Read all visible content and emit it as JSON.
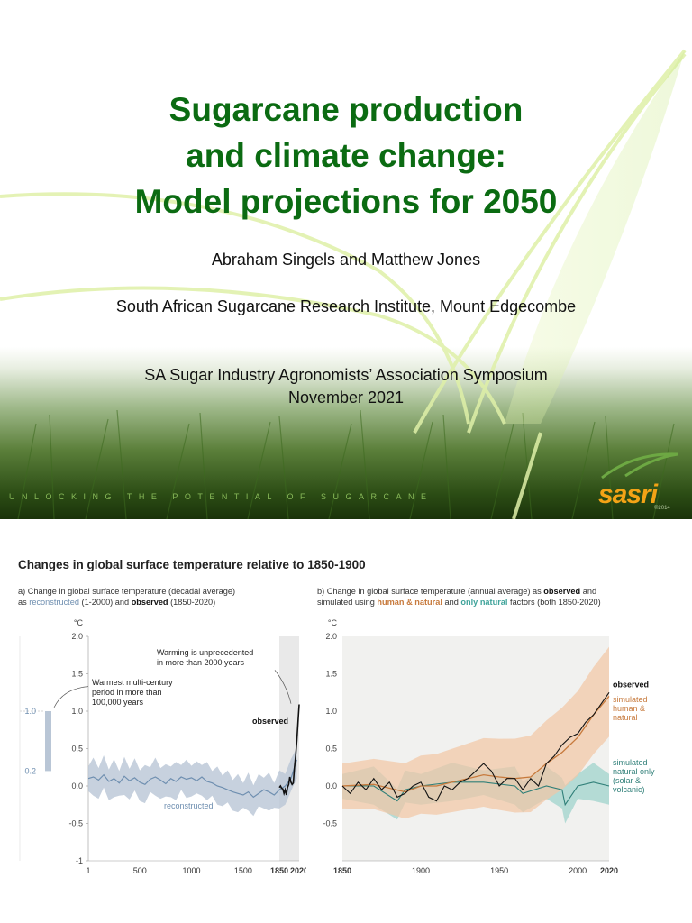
{
  "slide": {
    "title_lines": [
      "Sugarcane production",
      "and climate change:",
      "Model projections for 2050"
    ],
    "authors": "Abraham Singels and Matthew Jones",
    "institute": "South African Sugarcane Research Institute, Mount Edgecombe",
    "symposium": "SA Sugar Industry Agronomists’ Association Symposium",
    "date": "November 2021",
    "tagline": "UNLOCKING THE POTENTIAL OF SUGARCANE",
    "logo": "sasri",
    "copyright": "©2014",
    "colors": {
      "title": "#0b6b12",
      "logo": "#f3a316",
      "grass_dark": "#1e3d0c",
      "grass_light": "#8db560"
    }
  },
  "figure": {
    "title": "Changes in global surface temperature relative to 1850-1900",
    "panel_a_caption": {
      "line1": "a) Change in global surface temperature (decadal average)",
      "line2_as": "as",
      "line2_reconstructed": "reconstructed",
      "line2_mid": "(1-2000) and",
      "line2_observed": "observed",
      "line2_end": "(1850-2020)"
    },
    "panel_b_caption": {
      "line1_a": "b) Change in global surface temperature (annual average) as",
      "line1_observed": "observed",
      "line1_and": "and",
      "line2_a": "simulated using",
      "line2_human": "human & natural",
      "line2_and": "and",
      "line2_natural": "only natural",
      "line2_end": "factors (both 1850-2020)"
    }
  },
  "chart_data": [
    {
      "type": "line",
      "panel": "a",
      "title": "",
      "ylabel": "°C",
      "xlabel": "",
      "ylim": [
        -1,
        2
      ],
      "xlim": [
        1,
        2020
      ],
      "x_ticks": [
        "1",
        "500",
        "1000",
        "1500",
        "1850",
        "2020"
      ],
      "y_ticks": [
        "2.0",
        "1.5",
        "1.0",
        "0.5",
        "0.0",
        "-0.5",
        "-1"
      ],
      "bar_labels": [
        "1.0",
        "0.2"
      ],
      "warm_period_bar": [
        0.2,
        1.0
      ],
      "annotations": [
        "Warming is unprecedented in more than 2000 years",
        "Warmest multi-century period in more than 100,000 years"
      ],
      "series": [
        {
          "name": "reconstructed",
          "x": [
            1,
            50,
            100,
            150,
            200,
            250,
            300,
            350,
            400,
            450,
            500,
            550,
            600,
            650,
            700,
            750,
            800,
            850,
            900,
            950,
            1000,
            1050,
            1100,
            1150,
            1200,
            1250,
            1300,
            1350,
            1400,
            1450,
            1500,
            1550,
            1600,
            1650,
            1700,
            1750,
            1800,
            1850,
            1900,
            1950,
            2000
          ],
          "values": [
            0.1,
            0.12,
            0.08,
            0.15,
            0.06,
            0.1,
            0.04,
            0.13,
            0.07,
            0.11,
            0.05,
            0.02,
            0.09,
            0.12,
            0.08,
            0.03,
            0.1,
            0.06,
            0.12,
            0.09,
            0.11,
            0.07,
            0.12,
            0.06,
            0.04,
            0.0,
            -0.02,
            -0.05,
            -0.08,
            -0.1,
            -0.12,
            -0.08,
            -0.15,
            -0.1,
            -0.05,
            -0.08,
            -0.12,
            -0.05,
            0.0,
            0.1,
            0.35
          ],
          "band": 0.2
        },
        {
          "name": "observed",
          "x": [
            1850,
            1860,
            1870,
            1880,
            1890,
            1900,
            1910,
            1920,
            1930,
            1940,
            1950,
            1960,
            1970,
            1980,
            1990,
            2000,
            2010,
            2020
          ],
          "values": [
            -0.02,
            0.0,
            -0.03,
            -0.04,
            -0.1,
            -0.05,
            -0.12,
            -0.02,
            0.02,
            0.12,
            0.05,
            0.02,
            0.04,
            0.25,
            0.4,
            0.6,
            0.85,
            1.09
          ]
        }
      ],
      "labels": {
        "observed": "observed",
        "reconstructed": "reconstructed"
      }
    },
    {
      "type": "line",
      "panel": "b",
      "title": "",
      "ylabel": "°C",
      "xlabel": "",
      "ylim": [
        -1,
        2
      ],
      "xlim": [
        1850,
        2020
      ],
      "x_ticks": [
        "1850",
        "1900",
        "1950",
        "2000",
        "2020"
      ],
      "y_ticks": [
        "2.0",
        "1.5",
        "1.0",
        "0.5",
        "0.0",
        "-0.5"
      ],
      "series": [
        {
          "name": "observed",
          "x": [
            1850,
            1855,
            1860,
            1865,
            1870,
            1875,
            1880,
            1885,
            1890,
            1895,
            1900,
            1905,
            1910,
            1915,
            1920,
            1925,
            1930,
            1935,
            1940,
            1945,
            1950,
            1955,
            1960,
            1965,
            1970,
            1975,
            1980,
            1985,
            1990,
            1995,
            2000,
            2005,
            2010,
            2015,
            2020
          ],
          "values": [
            0.0,
            -0.1,
            0.05,
            -0.05,
            0.1,
            -0.05,
            0.05,
            -0.15,
            -0.1,
            0.0,
            0.05,
            -0.15,
            -0.2,
            0.0,
            -0.05,
            0.05,
            0.1,
            0.2,
            0.3,
            0.2,
            0.0,
            0.1,
            0.1,
            -0.05,
            0.1,
            0.0,
            0.3,
            0.4,
            0.55,
            0.65,
            0.7,
            0.85,
            0.95,
            1.1,
            1.25
          ]
        },
        {
          "name": "simulated human & natural",
          "x": [
            1850,
            1870,
            1890,
            1900,
            1910,
            1920,
            1930,
            1940,
            1950,
            1960,
            1970,
            1980,
            1990,
            2000,
            2010,
            2020
          ],
          "values": [
            0.0,
            0.02,
            -0.08,
            0.0,
            0.0,
            0.05,
            0.1,
            0.15,
            0.12,
            0.1,
            0.12,
            0.3,
            0.45,
            0.65,
            0.95,
            1.2
          ],
          "band": 0.3
        },
        {
          "name": "simulated natural only (solar & volcanic)",
          "x": [
            1850,
            1870,
            1885,
            1890,
            1900,
            1920,
            1940,
            1960,
            1965,
            1980,
            1990,
            1992,
            2000,
            2010,
            2020
          ],
          "values": [
            0.0,
            0.0,
            -0.2,
            -0.05,
            0.0,
            0.05,
            0.05,
            0.0,
            -0.1,
            0.0,
            -0.05,
            -0.25,
            0.0,
            0.05,
            0.0
          ],
          "band": 0.2
        }
      ],
      "labels": {
        "observed": "observed",
        "human_1": "simulated",
        "human_2": "human &",
        "human_3": "natural",
        "natural_1": "simulated",
        "natural_2": "natural only",
        "natural_3": "(solar &",
        "natural_4": "volcanic)"
      },
      "colors": {
        "observed": "#111111",
        "human": "#c77a3d",
        "human_band": "#f2c6a4",
        "natural": "#2f7f78",
        "natural_band": "#9fd3cc",
        "recon": "#6f8fb0",
        "recon_band": "#b9c6d6"
      }
    }
  ]
}
